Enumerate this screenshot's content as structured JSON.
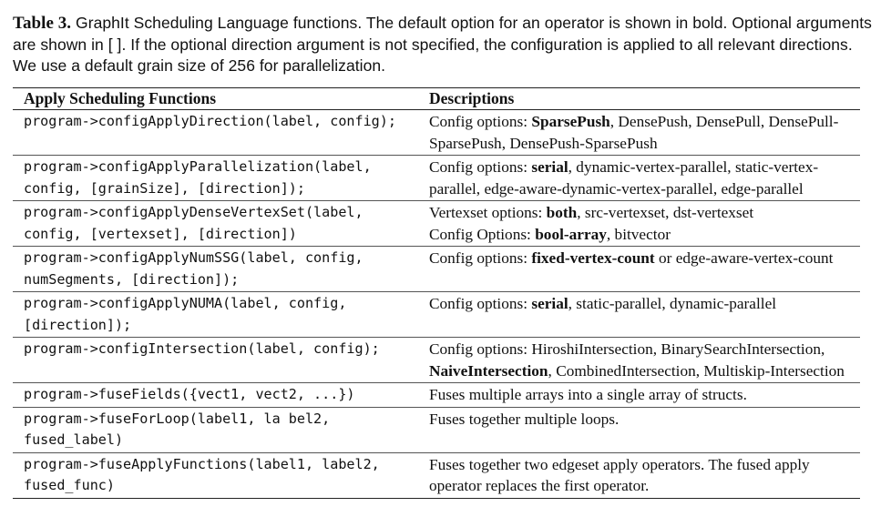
{
  "caption": {
    "label": "Table 3.",
    "text": "GraphIt Scheduling Language functions. The default option for an operator is shown in bold. Optional arguments are shown in [ ]. If the optional direction argument is not specified, the configuration is applied to all relevant directions. We use a default grain size of 256 for parallelization."
  },
  "table": {
    "headers": [
      "Apply Scheduling Functions",
      "Descriptions"
    ],
    "rows": [
      {
        "function": [
          "program->configApplyDirection(label, config);"
        ],
        "description": [
          {
            "t": "Config options: "
          },
          {
            "t": "SparsePush",
            "b": true
          },
          {
            "t": ", DensePush, DensePull, DensePull-SparsePush, DensePush-SparsePush"
          }
        ]
      },
      {
        "function": [
          "program->configApplyParallelization(label,",
          "config, [grainSize], [direction]);"
        ],
        "description": [
          {
            "t": "Config options: "
          },
          {
            "t": "serial",
            "b": true
          },
          {
            "t": ", dynamic-vertex-parallel, static-vertex-parallel, edge-aware-dynamic-vertex-parallel, edge-parallel"
          }
        ]
      },
      {
        "function": [
          "program->configApplyDenseVertexSet(label,",
          "config, [vertexset], [direction])"
        ],
        "description": [
          {
            "t": "Vertexset options: "
          },
          {
            "t": "both",
            "b": true
          },
          {
            "t": ", src-vertexset, dst-vertexset"
          },
          {
            "br": true
          },
          {
            "t": "Config Options: "
          },
          {
            "t": "bool-array",
            "b": true
          },
          {
            "t": ", bitvector"
          }
        ]
      },
      {
        "function": [
          "program->configApplyNumSSG(label, config,",
          "numSegments, [direction]);"
        ],
        "description": [
          {
            "t": "Config options: "
          },
          {
            "t": "fixed-vertex-count",
            "b": true
          },
          {
            "t": " or edge-aware-vertex-count"
          }
        ]
      },
      {
        "function": [
          "program->configApplyNUMA(label, config,",
          "[direction]);"
        ],
        "description": [
          {
            "t": "Config options: "
          },
          {
            "t": "serial",
            "b": true
          },
          {
            "t": ", static-parallel, dynamic-parallel"
          }
        ]
      },
      {
        "function": [
          "program->configIntersection(label, config);"
        ],
        "description": [
          {
            "t": "Config options: HiroshiIntersection, BinarySearchIntersection, "
          },
          {
            "t": "NaiveIntersection",
            "b": true
          },
          {
            "t": ", CombinedIntersection, Multiskip-Intersection"
          }
        ]
      },
      {
        "function": [
          "program->fuseFields({vect1, vect2, ...})"
        ],
        "description": [
          {
            "t": "Fuses multiple arrays into a single array of structs."
          }
        ]
      },
      {
        "function": [
          "program->fuseForLoop(label1, la bel2,",
          "fused_label)"
        ],
        "description": [
          {
            "t": "Fuses together multiple loops."
          }
        ]
      },
      {
        "function": [
          "program->fuseApplyFunctions(label1, label2,",
          "fused_func)"
        ],
        "description": [
          {
            "t": "Fuses together two edgeset apply operators. The fused apply operator replaces the first operator."
          }
        ]
      }
    ]
  }
}
